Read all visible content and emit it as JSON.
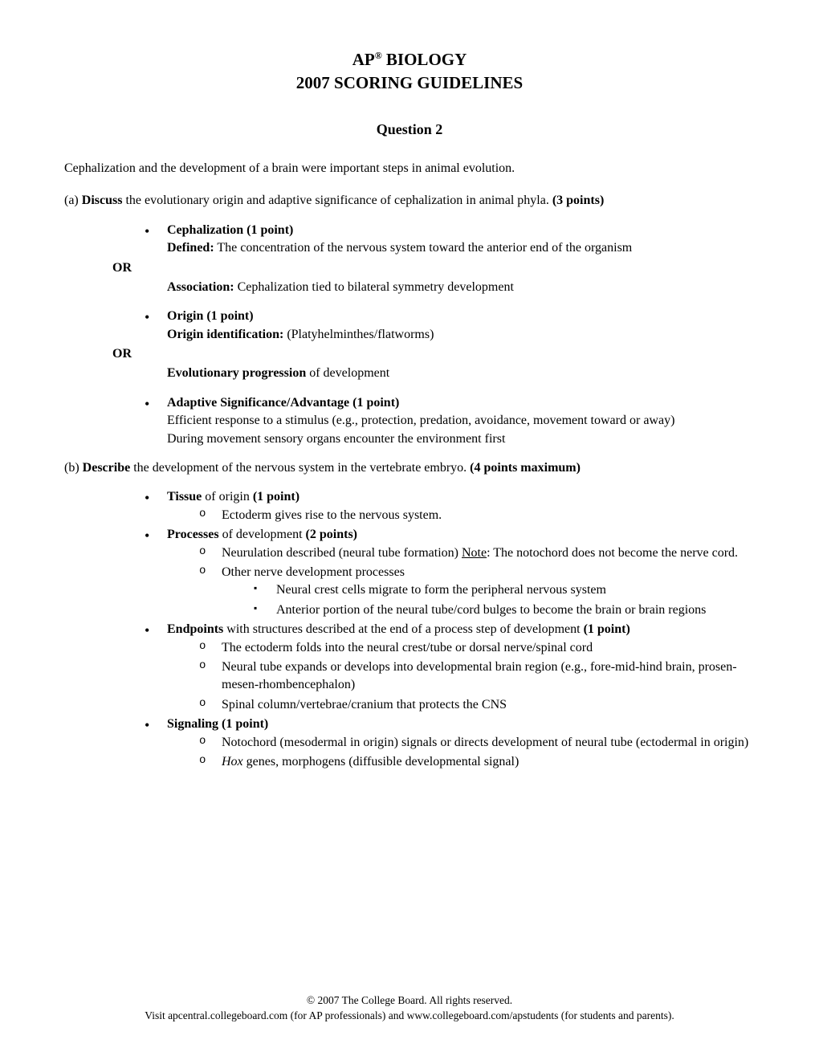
{
  "header": {
    "course": "AP",
    "subject": "BIOLOGY",
    "year_title": "2007 SCORING GUIDELINES"
  },
  "question": {
    "title": "Question 2",
    "intro": "Cephalization and the development of a brain were important steps in animal evolution."
  },
  "partA": {
    "label": "(a)",
    "verb": "Discuss",
    "text": " the evolutionary origin and adaptive significance of cephalization in animal phyla. ",
    "points": "(3 points)",
    "ceph_title": "Cephalization (1 point)",
    "ceph_defined_label": "Defined:",
    "ceph_defined_text": " The concentration of the nervous system toward the anterior end of the organism",
    "or1": "OR",
    "ceph_assoc_label": "Association:",
    "ceph_assoc_text": " Cephalization tied to bilateral symmetry development",
    "origin_title": "Origin (1 point)",
    "origin_id_label": "Origin identification:",
    "origin_id_text": " (Platyhelminthes/flatworms)",
    "or2": "OR",
    "origin_evo_label": "Evolutionary progression",
    "origin_evo_text": " of development",
    "adapt_title": "Adaptive Significance/Advantage (1 point)",
    "adapt_line1": "Efficient response to a stimulus (e.g., protection, predation, avoidance, movement toward or away)",
    "adapt_line2": "During movement sensory organs encounter the environment first"
  },
  "partB": {
    "label": "(b)",
    "verb": "Describe",
    "text": " the development of the nervous system in the vertebrate embryo. ",
    "points": "(4 points maximum)",
    "tissue_label": "Tissue",
    "tissue_text": " of origin ",
    "tissue_points": "(1 point)",
    "tissue_item1": "Ectoderm gives rise to the nervous system.",
    "processes_label": "Processes",
    "processes_text": " of development ",
    "processes_points": "(2 points)",
    "proc_item1_pre": "Neurulation described (neural tube formation) ",
    "proc_item1_note": "Note",
    "proc_item1_post": ": The notochord does not become the nerve cord.",
    "proc_item2": "Other nerve development processes",
    "proc_sub1": "Neural crest cells migrate to form the peripheral nervous system",
    "proc_sub2": "Anterior portion of the neural tube/cord bulges to become the brain or brain regions",
    "endpoints_label": "Endpoints",
    "endpoints_text": " with structures described at the end of a process step of development ",
    "endpoints_points": "(1 point)",
    "end_item1": "The ectoderm folds into the neural crest/tube or dorsal nerve/spinal cord",
    "end_item2": "Neural tube expands or develops into developmental brain region (e.g., fore-mid-hind brain, prosen-mesen-rhombencephalon)",
    "end_item3": "Spinal column/vertebrae/cranium that protects the CNS",
    "signaling_title": "Signaling (1 point)",
    "sig_item1": "Notochord (mesodermal in origin) signals or directs development of neural tube (ectodermal in origin)",
    "sig_item2_hox": "Hox",
    "sig_item2_text": " genes, morphogens (diffusible developmental signal)"
  },
  "footer": {
    "line1": "© 2007 The College Board. All rights reserved.",
    "line2": "Visit apcentral.collegeboard.com (for AP professionals) and www.collegeboard.com/apstudents (for students and parents)."
  }
}
